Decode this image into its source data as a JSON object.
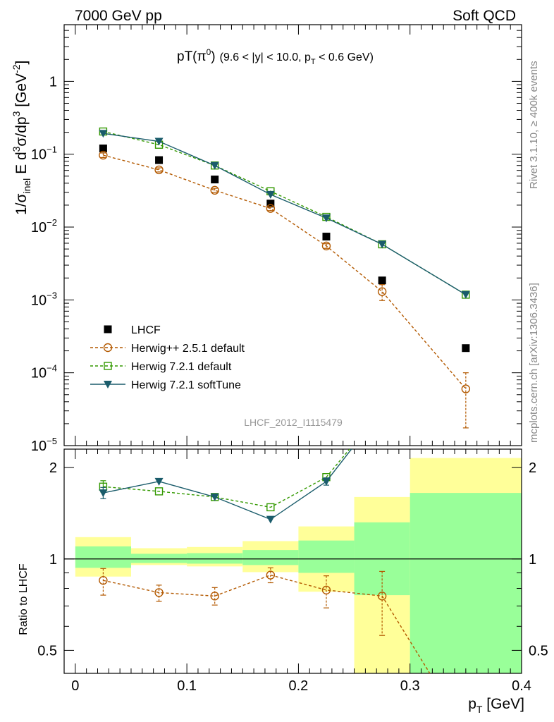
{
  "header": {
    "left": "7000 GeV pp",
    "right": "Soft QCD"
  },
  "side_labels": {
    "rivet": "Rivet 3.1.10, ≥ 400k events",
    "mcplots": "mcplots.cern.ch [arXiv:1306.3436]"
  },
  "plot_title": {
    "main": "pT(π",
    "sup": "0",
    "close": ")",
    "cuts_a": "(9.6 < |y| < 10.0, p",
    "cuts_sub": "T",
    "cuts_b": " < 0.6 GeV)"
  },
  "watermark": "LHCF_2012_I1115479",
  "ylabel_top": "1/σinel E d3σ/dp3 [GeV-2]",
  "ylabel_bottom": "Ratio to LHCF",
  "xlabel": {
    "main": "p",
    "sub": "T",
    "unit": " [GeV]"
  },
  "colors": {
    "data": "#000000",
    "herwigpp": "#b35900",
    "herwig_default": "#339900",
    "herwig_soft": "#1a5c6b",
    "band_outer": "#ffff99",
    "band_inner": "#99ff99"
  },
  "chart_data": [
    {
      "type": "scatter",
      "panel": "main",
      "y_scale": "log",
      "xlim": [
        -0.01,
        0.4
      ],
      "ylim": [
        1e-05,
        6
      ],
      "x_ticks": [
        0,
        0.1,
        0.2,
        0.3,
        0.4
      ],
      "y_ticks": [
        {
          "value": 1e-05,
          "base": "10",
          "exp": "−5"
        },
        {
          "value": 0.0001,
          "base": "10",
          "exp": "−4"
        },
        {
          "value": 0.001,
          "base": "10",
          "exp": "−3"
        },
        {
          "value": 0.01,
          "base": "10",
          "exp": "−2"
        },
        {
          "value": 0.1,
          "base": "10",
          "exp": "−1"
        },
        {
          "value": 1,
          "base": "1",
          "exp": ""
        }
      ],
      "legend_position": "bottom-left",
      "series": [
        {
          "name": "LHCF",
          "key": "data",
          "x": [
            0.025,
            0.075,
            0.125,
            0.175,
            0.225,
            0.275,
            0.35
          ],
          "y": [
            0.12,
            0.083,
            0.045,
            0.021,
            0.0074,
            0.00185,
            0.000218
          ]
        },
        {
          "name": "Herwig++ 2.5.1 default",
          "key": "herwigpp",
          "x": [
            0.025,
            0.075,
            0.125,
            0.175,
            0.225,
            0.275,
            0.35
          ],
          "y": [
            0.097,
            0.061,
            0.032,
            0.018,
            0.0055,
            0.0013,
            6e-05
          ],
          "yerr_low": [
            0.09,
            0.057,
            0.03,
            0.0168,
            0.0051,
            0.00098,
            1.75e-05
          ],
          "yerr_high": [
            0.104,
            0.065,
            0.034,
            0.0192,
            0.0059,
            0.00162,
            0.0001
          ]
        },
        {
          "name": "Herwig 7.2.1 default",
          "key": "herwig_default",
          "x": [
            0.025,
            0.075,
            0.125,
            0.175,
            0.225,
            0.275,
            0.35
          ],
          "y": [
            0.205,
            0.135,
            0.07,
            0.031,
            0.0138,
            0.0058,
            0.00118
          ]
        },
        {
          "name": "Herwig 7.2.1 softTune",
          "key": "herwig_soft",
          "x": [
            0.025,
            0.075,
            0.125,
            0.175,
            0.225,
            0.275,
            0.35
          ],
          "y": [
            0.193,
            0.15,
            0.07,
            0.028,
            0.0133,
            0.0058,
            0.00118
          ]
        }
      ]
    },
    {
      "type": "line",
      "panel": "ratio",
      "y_scale": "log",
      "xlim": [
        -0.01,
        0.4
      ],
      "ylim": [
        0.42,
        2.3
      ],
      "x_ticks": [
        0,
        0.1,
        0.2,
        0.3,
        0.4
      ],
      "y_ticks": [
        0.5,
        1,
        2
      ],
      "reference_line": 1,
      "bands": [
        {
          "x0": 0.0,
          "x1": 0.05,
          "outer": [
            0.875,
            1.18
          ],
          "inner": [
            0.935,
            1.1
          ]
        },
        {
          "x0": 0.05,
          "x1": 0.1,
          "outer": [
            0.955,
            1.085
          ],
          "inner": [
            0.97,
            1.04
          ]
        },
        {
          "x0": 0.1,
          "x1": 0.15,
          "outer": [
            0.945,
            1.095
          ],
          "inner": [
            0.965,
            1.045
          ]
        },
        {
          "x0": 0.15,
          "x1": 0.2,
          "outer": [
            0.905,
            1.145
          ],
          "inner": [
            0.955,
            1.07
          ]
        },
        {
          "x0": 0.2,
          "x1": 0.25,
          "outer": [
            0.78,
            1.28
          ],
          "inner": [
            0.9,
            1.15
          ]
        },
        {
          "x0": 0.25,
          "x1": 0.3,
          "outer": [
            0.405,
            1.6
          ],
          "inner": [
            0.76,
            1.32
          ]
        },
        {
          "x0": 0.3,
          "x1": 0.4,
          "outer": [
            0.35,
            2.15
          ],
          "inner": [
            0.35,
            1.65
          ]
        }
      ],
      "series": [
        {
          "name": "Herwig++ 2.5.1 default",
          "key": "herwigpp",
          "x": [
            0.025,
            0.075,
            0.125,
            0.175,
            0.225,
            0.275,
            0.35
          ],
          "y": [
            0.85,
            0.775,
            0.755,
            0.885,
            0.79,
            0.755,
            0.27
          ],
          "yerr_low": [
            0.76,
            0.725,
            0.705,
            0.835,
            0.69,
            0.56,
            0.27
          ],
          "yerr_high": [
            0.93,
            0.82,
            0.805,
            0.935,
            0.88,
            0.91,
            0.27
          ]
        },
        {
          "name": "Herwig 7.2.1 default",
          "key": "herwig_default",
          "x": [
            0.025,
            0.075,
            0.125,
            0.175,
            0.225,
            0.275
          ],
          "y": [
            1.73,
            1.67,
            1.6,
            1.48,
            1.86,
            3.1
          ],
          "yerr_low": [
            1.66,
            1.67,
            1.6,
            1.48,
            1.86,
            3.1
          ],
          "yerr_high": [
            1.81,
            1.67,
            1.6,
            1.48,
            1.86,
            3.1
          ]
        },
        {
          "name": "Herwig 7.2.1 softTune",
          "key": "herwig_soft",
          "x": [
            0.025,
            0.075,
            0.125,
            0.175,
            0.225,
            0.275
          ],
          "y": [
            1.65,
            1.8,
            1.6,
            1.35,
            1.8,
            3.1
          ],
          "yerr_low": [
            1.58,
            1.8,
            1.6,
            1.35,
            1.75,
            3.1
          ],
          "yerr_high": [
            1.72,
            1.8,
            1.6,
            1.35,
            1.85,
            3.1
          ]
        }
      ]
    }
  ]
}
